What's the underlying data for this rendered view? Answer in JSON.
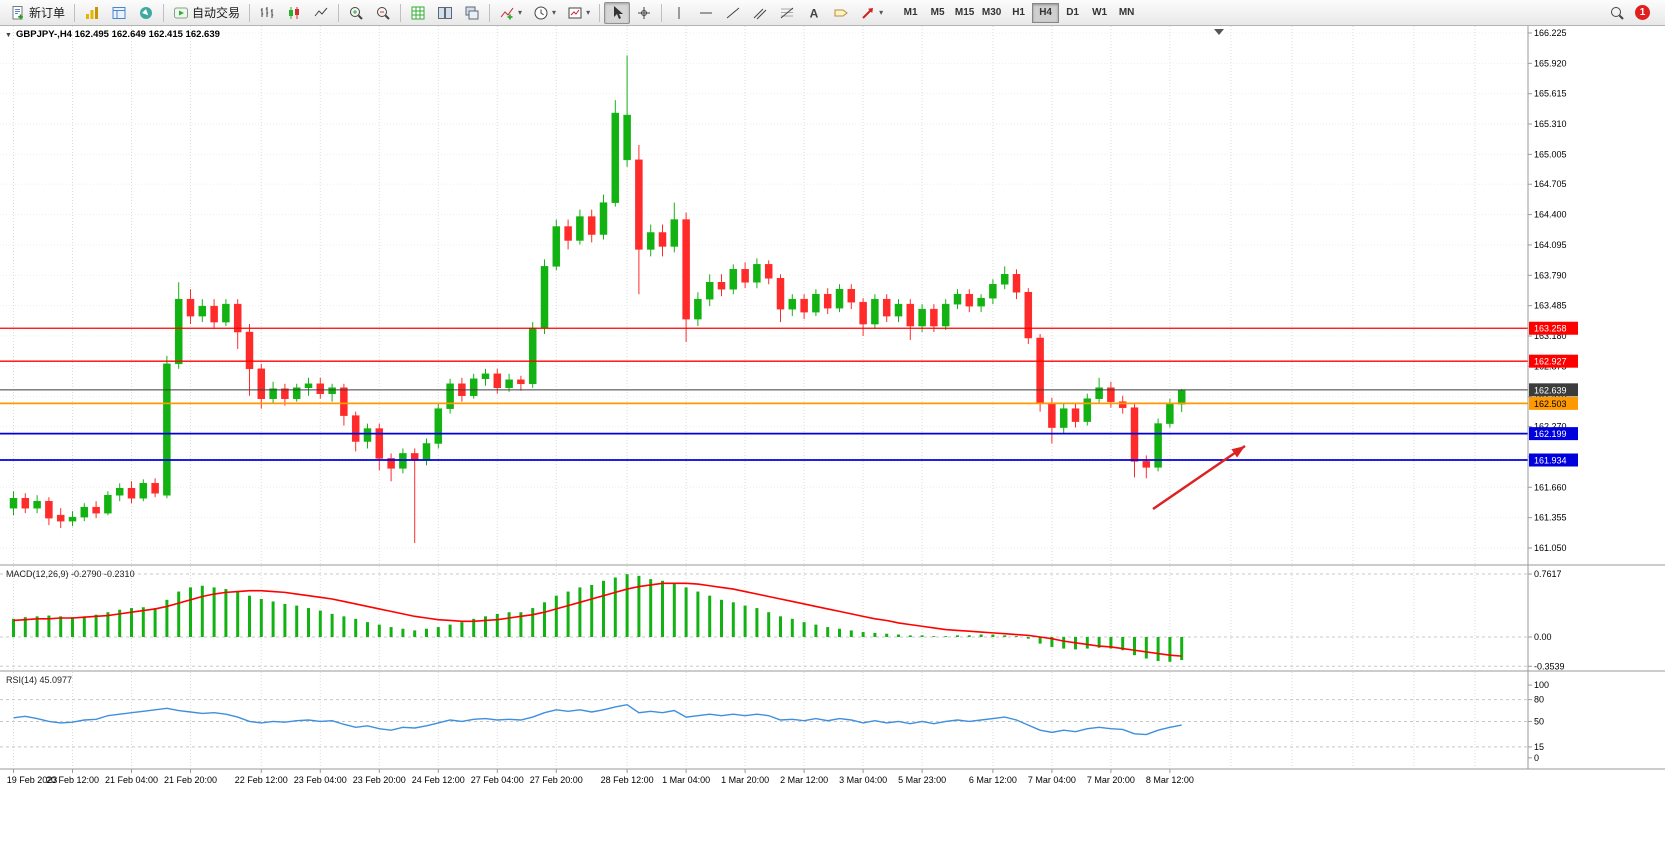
{
  "toolbar": {
    "new_order_label": "新订单",
    "auto_trading_label": "自动交易",
    "timeframes": [
      "M1",
      "M5",
      "M15",
      "M30",
      "H1",
      "H4",
      "D1",
      "W1",
      "MN"
    ],
    "active_timeframe": "H4",
    "notification_count": "1",
    "icon_names": [
      "market-watch-icon",
      "data-window-icon",
      "navigator-icon",
      "auto-trading-icon",
      "bar-chart-icon",
      "candlestick-chart-icon",
      "line-chart-icon",
      "zoom-in-icon",
      "zoom-out-icon",
      "grid-icon",
      "tile-windows-icon",
      "cascade-windows-icon",
      "indicators-icon",
      "periods-icon",
      "templates-icon",
      "cursor-icon",
      "crosshair-icon",
      "vertical-line-icon",
      "horizontal-line-icon",
      "trendline-icon",
      "channel-icon",
      "fibonacci-icon",
      "text-icon",
      "label-icon",
      "arrows-icon",
      "search-icon"
    ]
  },
  "chart_data": {
    "type": "candlestick",
    "symbol": "GBPJPY-",
    "period": "H4",
    "title": "GBPJPY-,H4 162.495 162.649 162.415 162.639",
    "last_ohlc": {
      "open": 162.495,
      "high": 162.649,
      "low": 162.415,
      "close": 162.639
    },
    "layout": {
      "price_range": [
        160.889,
        166.295
      ],
      "macd_range": [
        -0.399,
        0.859
      ],
      "rsi_range": [
        -14,
        118
      ],
      "grid": true,
      "legend_position": "none"
    },
    "style": {
      "up": "#12b212",
      "down": "#ff2b2b",
      "macd_bar": "#12b212",
      "macd_signal": "#ff0000",
      "rsi_line": "#3f8fdf",
      "grid_color": "#dcdcdc",
      "axis_color": "#9a9a9a"
    },
    "price_axis": [
      {
        "value": 166.225,
        "label": "166.225"
      },
      {
        "value": 165.92,
        "label": "165.920"
      },
      {
        "value": 165.615,
        "label": "165.615"
      },
      {
        "value": 165.31,
        "label": "165.310"
      },
      {
        "value": 165.005,
        "label": "165.005"
      },
      {
        "value": 164.705,
        "label": "164.705"
      },
      {
        "value": 164.4,
        "label": "164.400"
      },
      {
        "value": 164.095,
        "label": "164.095"
      },
      {
        "value": 163.79,
        "label": "163.790"
      },
      {
        "value": 163.485,
        "label": "163.485"
      },
      {
        "value": 163.18,
        "label": "163.180"
      },
      {
        "value": 162.875,
        "label": "162.875"
      },
      {
        "value": 162.57,
        "label": "162.570"
      },
      {
        "value": 162.27,
        "label": "162.270"
      },
      {
        "value": 161.965,
        "label": "161.965"
      },
      {
        "value": 161.66,
        "label": "161.660"
      },
      {
        "value": 161.355,
        "label": "161.355"
      },
      {
        "value": 161.05,
        "label": "161.050"
      }
    ],
    "levels": [
      {
        "value": 163.258,
        "label": "163.258",
        "color": "#ff0000",
        "text_color": "#ffffff",
        "width": 1.3
      },
      {
        "value": 162.927,
        "label": "162.927",
        "color": "#ff0000",
        "text_color": "#ffffff",
        "width": 1.3
      },
      {
        "value": 162.639,
        "label": "162.639",
        "color": "#3c3c3c",
        "text_color": "#ffffff",
        "width": 1
      },
      {
        "value": 162.503,
        "label": "162.503",
        "color": "#ff9900",
        "text_color": "#000000",
        "width": 1.8
      },
      {
        "value": 162.199,
        "label": "162.199",
        "color": "#0000dd",
        "text_color": "#ffffff",
        "width": 1.8
      },
      {
        "value": 161.934,
        "label": "161.934",
        "color": "#0000dd",
        "text_color": "#ffffff",
        "width": 1.8
      }
    ],
    "time_labels": [
      {
        "index": 0,
        "label": "19 Feb 2023"
      },
      {
        "index": 5,
        "label": "20 Feb 12:00"
      },
      {
        "index": 10,
        "label": "21 Feb 04:00"
      },
      {
        "index": 15,
        "label": "21 Feb 20:00"
      },
      {
        "index": 21,
        "label": "22 Feb 12:00"
      },
      {
        "index": 26,
        "label": "23 Feb 04:00"
      },
      {
        "index": 31,
        "label": "23 Feb 20:00"
      },
      {
        "index": 36,
        "label": "24 Feb 12:00"
      },
      {
        "index": 41,
        "label": "27 Feb 04:00"
      },
      {
        "index": 46,
        "label": "27 Feb 20:00"
      },
      {
        "index": 52,
        "label": "28 Feb 12:00"
      },
      {
        "index": 57,
        "label": "1 Mar 04:00"
      },
      {
        "index": 62,
        "label": "1 Mar 20:00"
      },
      {
        "index": 67,
        "label": "2 Mar 12:00"
      },
      {
        "index": 72,
        "label": "3 Mar 04:00"
      },
      {
        "index": 77,
        "label": "5 Mar 23:00"
      },
      {
        "index": 83,
        "label": "6 Mar 12:00"
      },
      {
        "index": 88,
        "label": "7 Mar 04:00"
      },
      {
        "index": 93,
        "label": "7 Mar 20:00"
      },
      {
        "index": 98,
        "label": "8 Mar 12:00"
      }
    ],
    "candles": [
      [
        161.45,
        161.62,
        161.38,
        161.55
      ],
      [
        161.55,
        161.6,
        161.4,
        161.45
      ],
      [
        161.45,
        161.58,
        161.4,
        161.52
      ],
      [
        161.52,
        161.56,
        161.28,
        161.35
      ],
      [
        161.38,
        161.45,
        161.25,
        161.32
      ],
      [
        161.32,
        161.42,
        161.27,
        161.36
      ],
      [
        161.36,
        161.5,
        161.32,
        161.46
      ],
      [
        161.46,
        161.52,
        161.35,
        161.4
      ],
      [
        161.4,
        161.62,
        161.38,
        161.58
      ],
      [
        161.58,
        161.7,
        161.52,
        161.65
      ],
      [
        161.65,
        161.72,
        161.5,
        161.55
      ],
      [
        161.55,
        161.74,
        161.52,
        161.7
      ],
      [
        161.7,
        161.75,
        161.56,
        161.6
      ],
      [
        161.58,
        162.98,
        161.55,
        162.9
      ],
      [
        162.9,
        163.72,
        162.85,
        163.55
      ],
      [
        163.55,
        163.65,
        163.3,
        163.38
      ],
      [
        163.38,
        163.55,
        163.32,
        163.48
      ],
      [
        163.48,
        163.55,
        163.25,
        163.32
      ],
      [
        163.32,
        163.55,
        163.28,
        163.5
      ],
      [
        163.5,
        163.55,
        163.05,
        163.22
      ],
      [
        163.22,
        163.3,
        162.58,
        162.85
      ],
      [
        162.85,
        162.9,
        162.45,
        162.55
      ],
      [
        162.55,
        162.72,
        162.5,
        162.65
      ],
      [
        162.65,
        162.7,
        162.48,
        162.55
      ],
      [
        162.55,
        162.7,
        162.52,
        162.66
      ],
      [
        162.66,
        162.76,
        162.58,
        162.7
      ],
      [
        162.7,
        162.76,
        162.55,
        162.6
      ],
      [
        162.6,
        162.7,
        162.52,
        162.66
      ],
      [
        162.66,
        162.7,
        162.28,
        162.38
      ],
      [
        162.38,
        162.42,
        162.02,
        162.12
      ],
      [
        162.12,
        162.3,
        162.05,
        162.25
      ],
      [
        162.25,
        162.3,
        161.83,
        161.95
      ],
      [
        161.95,
        162.0,
        161.72,
        161.85
      ],
      [
        161.85,
        162.05,
        161.8,
        162.0
      ],
      [
        162.0,
        162.05,
        161.1,
        161.93
      ],
      [
        161.93,
        162.15,
        161.88,
        162.1
      ],
      [
        162.1,
        162.5,
        162.05,
        162.45
      ],
      [
        162.45,
        162.75,
        162.4,
        162.7
      ],
      [
        162.7,
        162.76,
        162.52,
        162.58
      ],
      [
        162.58,
        162.8,
        162.55,
        162.75
      ],
      [
        162.75,
        162.85,
        162.68,
        162.8
      ],
      [
        162.8,
        162.85,
        162.6,
        162.66
      ],
      [
        162.66,
        162.8,
        162.62,
        162.74
      ],
      [
        162.74,
        162.78,
        162.63,
        162.7
      ],
      [
        162.7,
        163.32,
        162.66,
        163.26
      ],
      [
        163.26,
        163.95,
        163.2,
        163.88
      ],
      [
        163.88,
        164.35,
        163.84,
        164.28
      ],
      [
        164.28,
        164.35,
        164.05,
        164.14
      ],
      [
        164.14,
        164.45,
        164.1,
        164.38
      ],
      [
        164.38,
        164.45,
        164.12,
        164.2
      ],
      [
        164.2,
        164.6,
        164.15,
        164.52
      ],
      [
        164.52,
        165.55,
        164.48,
        165.42
      ],
      [
        164.95,
        166.0,
        164.88,
        165.4
      ],
      [
        164.95,
        165.1,
        163.6,
        164.05
      ],
      [
        164.05,
        164.3,
        163.98,
        164.22
      ],
      [
        164.22,
        164.3,
        163.98,
        164.08
      ],
      [
        164.08,
        164.52,
        164.02,
        164.35
      ],
      [
        164.35,
        164.42,
        163.12,
        163.35
      ],
      [
        163.35,
        163.62,
        163.28,
        163.55
      ],
      [
        163.55,
        163.8,
        163.48,
        163.72
      ],
      [
        163.72,
        163.8,
        163.58,
        163.65
      ],
      [
        163.65,
        163.9,
        163.6,
        163.85
      ],
      [
        163.85,
        163.92,
        163.66,
        163.72
      ],
      [
        163.72,
        163.96,
        163.66,
        163.9
      ],
      [
        163.9,
        163.94,
        163.7,
        163.76
      ],
      [
        163.76,
        163.8,
        163.32,
        163.45
      ],
      [
        163.45,
        163.6,
        163.38,
        163.55
      ],
      [
        163.55,
        163.6,
        163.35,
        163.42
      ],
      [
        163.42,
        163.65,
        163.38,
        163.6
      ],
      [
        163.6,
        163.66,
        163.4,
        163.46
      ],
      [
        163.46,
        163.7,
        163.42,
        163.65
      ],
      [
        163.65,
        163.7,
        163.45,
        163.52
      ],
      [
        163.52,
        163.56,
        163.18,
        163.3
      ],
      [
        163.3,
        163.6,
        163.25,
        163.55
      ],
      [
        163.55,
        163.6,
        163.32,
        163.38
      ],
      [
        163.38,
        163.55,
        163.32,
        163.5
      ],
      [
        163.5,
        163.55,
        163.14,
        163.28
      ],
      [
        163.28,
        163.5,
        163.22,
        163.45
      ],
      [
        163.45,
        163.5,
        163.22,
        163.28
      ],
      [
        163.28,
        163.55,
        163.24,
        163.5
      ],
      [
        163.5,
        163.65,
        163.45,
        163.6
      ],
      [
        163.6,
        163.65,
        163.42,
        163.48
      ],
      [
        163.48,
        163.6,
        163.42,
        163.56
      ],
      [
        163.56,
        163.75,
        163.5,
        163.7
      ],
      [
        163.7,
        163.88,
        163.65,
        163.8
      ],
      [
        163.8,
        163.85,
        163.55,
        163.62
      ],
      [
        163.62,
        163.66,
        163.1,
        163.16
      ],
      [
        163.16,
        163.2,
        162.42,
        162.5
      ],
      [
        162.5,
        162.56,
        162.1,
        162.26
      ],
      [
        162.26,
        162.5,
        162.2,
        162.45
      ],
      [
        162.45,
        162.5,
        162.26,
        162.32
      ],
      [
        162.32,
        162.6,
        162.28,
        162.55
      ],
      [
        162.55,
        162.76,
        162.5,
        162.66
      ],
      [
        162.66,
        162.72,
        162.46,
        162.52
      ],
      [
        162.52,
        162.58,
        162.4,
        162.46
      ],
      [
        162.46,
        162.5,
        161.76,
        161.92
      ],
      [
        161.92,
        161.98,
        161.75,
        161.86
      ],
      [
        161.86,
        162.35,
        161.82,
        162.3
      ],
      [
        162.3,
        162.55,
        162.26,
        162.5
      ],
      [
        162.495,
        162.649,
        162.415,
        162.639
      ]
    ],
    "macd": {
      "label": "MACD(12,26,9) -0.2790 -0.2310",
      "main_value": -0.279,
      "signal_value": -0.231,
      "axis": [
        {
          "value": 0.7617,
          "label": "0.7617"
        },
        {
          "value": 0,
          "label": "0.00"
        },
        {
          "value": -0.3539,
          "label": "-0.3539"
        }
      ],
      "histogram": [
        0.22,
        0.24,
        0.25,
        0.26,
        0.25,
        0.24,
        0.25,
        0.27,
        0.3,
        0.33,
        0.35,
        0.36,
        0.35,
        0.45,
        0.55,
        0.6,
        0.62,
        0.6,
        0.58,
        0.55,
        0.5,
        0.46,
        0.43,
        0.4,
        0.38,
        0.35,
        0.32,
        0.28,
        0.25,
        0.22,
        0.18,
        0.15,
        0.12,
        0.1,
        0.08,
        0.1,
        0.12,
        0.15,
        0.18,
        0.22,
        0.25,
        0.28,
        0.3,
        0.3,
        0.35,
        0.42,
        0.5,
        0.55,
        0.6,
        0.63,
        0.68,
        0.72,
        0.76,
        0.74,
        0.7,
        0.68,
        0.65,
        0.6,
        0.55,
        0.5,
        0.45,
        0.42,
        0.38,
        0.35,
        0.3,
        0.25,
        0.22,
        0.18,
        0.15,
        0.12,
        0.1,
        0.08,
        0.06,
        0.05,
        0.04,
        0.03,
        0.02,
        0.02,
        0.01,
        0.01,
        0.02,
        0.02,
        0.03,
        0.03,
        0.02,
        0.01,
        -0.02,
        -0.08,
        -0.12,
        -0.14,
        -0.15,
        -0.14,
        -0.13,
        -0.14,
        -0.16,
        -0.22,
        -0.26,
        -0.29,
        -0.3,
        -0.279
      ],
      "signal": [
        0.2,
        0.21,
        0.22,
        0.22,
        0.23,
        0.23,
        0.24,
        0.25,
        0.26,
        0.28,
        0.3,
        0.32,
        0.34,
        0.37,
        0.41,
        0.45,
        0.49,
        0.52,
        0.54,
        0.55,
        0.56,
        0.56,
        0.55,
        0.54,
        0.52,
        0.5,
        0.48,
        0.46,
        0.43,
        0.4,
        0.37,
        0.34,
        0.31,
        0.28,
        0.25,
        0.23,
        0.21,
        0.2,
        0.19,
        0.19,
        0.2,
        0.21,
        0.23,
        0.25,
        0.27,
        0.3,
        0.34,
        0.38,
        0.42,
        0.46,
        0.5,
        0.54,
        0.58,
        0.61,
        0.63,
        0.65,
        0.65,
        0.65,
        0.64,
        0.62,
        0.6,
        0.58,
        0.55,
        0.52,
        0.49,
        0.46,
        0.43,
        0.4,
        0.37,
        0.34,
        0.31,
        0.28,
        0.25,
        0.22,
        0.2,
        0.17,
        0.15,
        0.13,
        0.11,
        0.09,
        0.08,
        0.07,
        0.06,
        0.05,
        0.04,
        0.03,
        0.02,
        0.0,
        -0.02,
        -0.05,
        -0.07,
        -0.09,
        -0.11,
        -0.12,
        -0.14,
        -0.16,
        -0.18,
        -0.2,
        -0.22,
        -0.231
      ]
    },
    "rsi": {
      "label": "RSI(14) 45.0977",
      "value": 45.0977,
      "axis": [
        {
          "value": 100,
          "label": "100",
          "dashed": false
        },
        {
          "value": 80,
          "label": "80",
          "dashed": true
        },
        {
          "value": 50,
          "label": "50",
          "dashed": true
        },
        {
          "value": 15,
          "label": "15",
          "dashed": true
        },
        {
          "value": 0,
          "label": "0",
          "dashed": false
        }
      ],
      "values": [
        55,
        57,
        54,
        50,
        48,
        49,
        52,
        53,
        58,
        60,
        62,
        64,
        66,
        68,
        65,
        63,
        61,
        62,
        60,
        56,
        50,
        48,
        50,
        49,
        51,
        52,
        50,
        51,
        46,
        42,
        44,
        40,
        38,
        42,
        41,
        44,
        48,
        52,
        50,
        53,
        54,
        52,
        53,
        52,
        56,
        62,
        66,
        64,
        66,
        63,
        66,
        70,
        73,
        62,
        64,
        62,
        65,
        56,
        58,
        60,
        58,
        60,
        58,
        60,
        58,
        52,
        53,
        51,
        54,
        51,
        54,
        52,
        48,
        51,
        48,
        50,
        47,
        50,
        47,
        50,
        52,
        50,
        52,
        54,
        56,
        52,
        45,
        38,
        35,
        38,
        36,
        40,
        42,
        40,
        39,
        33,
        32,
        38,
        42,
        45.1
      ]
    },
    "annotations": [
      {
        "type": "arrow",
        "from": [
          1153,
          483
        ],
        "to": [
          1245,
          420
        ],
        "color": "#dd2222"
      }
    ]
  }
}
